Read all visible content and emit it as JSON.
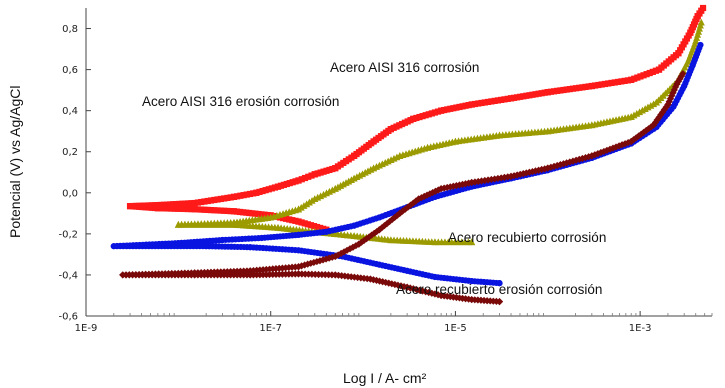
{
  "chart_data": {
    "type": "line",
    "title": "",
    "xlabel": "Log I / A- cm²",
    "ylabel": "Potencial (V) vs Ag/AgCl",
    "x_scale": "log",
    "xlim": [
      1e-09,
      0.006
    ],
    "ylim": [
      -0.6,
      0.9
    ],
    "x_ticks": [
      {
        "value": 1e-09,
        "label": "1E-9"
      },
      {
        "value": 1e-07,
        "label": "1E-7"
      },
      {
        "value": 1e-05,
        "label": "1E-5"
      },
      {
        "value": 0.001,
        "label": "1E-3"
      }
    ],
    "y_ticks": [
      {
        "value": -0.6,
        "label": "-0,6"
      },
      {
        "value": -0.4,
        "label": "-0,4"
      },
      {
        "value": -0.2,
        "label": "-0,2"
      },
      {
        "value": 0.0,
        "label": "0,0"
      },
      {
        "value": 0.2,
        "label": "0,2"
      },
      {
        "value": 0.4,
        "label": "0,4"
      },
      {
        "value": 0.6,
        "label": "0,6"
      },
      {
        "value": 0.8,
        "label": "0,8"
      }
    ],
    "grid": false,
    "annotations": [
      "Acero AISI 316 corrosión",
      "Acero AISI 316 erosión corrosión",
      "Acero recubierto corrosión",
      "Acero recubierto erosión corrosión"
    ],
    "series": [
      {
        "color": "#ff1a1a",
        "marker": "square",
        "points": [
          [
            4e-07,
            -0.18
          ],
          [
            2e-07,
            -0.14
          ],
          [
            1e-07,
            -0.11
          ],
          [
            4e-08,
            -0.09
          ],
          [
            1.5e-08,
            -0.08
          ],
          [
            6e-09,
            -0.075
          ],
          [
            3e-09,
            -0.065
          ],
          [
            6e-09,
            -0.06
          ],
          [
            1.5e-08,
            -0.05
          ],
          [
            4e-08,
            -0.02
          ],
          [
            7e-08,
            0.0
          ],
          [
            1.2e-07,
            0.03
          ],
          [
            2e-07,
            0.06
          ],
          [
            3e-07,
            0.09
          ],
          [
            5e-07,
            0.12
          ],
          [
            8e-07,
            0.18
          ],
          [
            1.3e-06,
            0.25
          ],
          [
            2e-06,
            0.31
          ],
          [
            3.5e-06,
            0.36
          ],
          [
            7e-06,
            0.4
          ],
          [
            1.5e-05,
            0.43
          ],
          [
            4e-05,
            0.46
          ],
          [
            0.0001,
            0.49
          ],
          [
            0.0003,
            0.52
          ],
          [
            0.0008,
            0.55
          ],
          [
            0.0016,
            0.6
          ],
          [
            0.0026,
            0.68
          ],
          [
            0.0035,
            0.78
          ],
          [
            0.0042,
            0.86
          ],
          [
            0.0048,
            0.9
          ]
        ]
      },
      {
        "color": "#9b9b00",
        "marker": "triangle",
        "points": [
          [
            1.5e-05,
            -0.24
          ],
          [
            6e-06,
            -0.24
          ],
          [
            2e-06,
            -0.23
          ],
          [
            8e-07,
            -0.21
          ],
          [
            3e-07,
            -0.19
          ],
          [
            1.2e-07,
            -0.17
          ],
          [
            4e-08,
            -0.155
          ],
          [
            1e-08,
            -0.155
          ],
          [
            4e-08,
            -0.145
          ],
          [
            1e-07,
            -0.12
          ],
          [
            2e-07,
            -0.08
          ],
          [
            3e-07,
            -0.03
          ],
          [
            5e-07,
            0.02
          ],
          [
            8e-07,
            0.07
          ],
          [
            1.3e-06,
            0.12
          ],
          [
            2.5e-06,
            0.18
          ],
          [
            5e-06,
            0.22
          ],
          [
            1e-05,
            0.25
          ],
          [
            3e-05,
            0.28
          ],
          [
            0.0001,
            0.3
          ],
          [
            0.0003,
            0.33
          ],
          [
            0.0008,
            0.37
          ],
          [
            0.0015,
            0.44
          ],
          [
            0.0025,
            0.54
          ],
          [
            0.0033,
            0.64
          ],
          [
            0.004,
            0.74
          ],
          [
            0.0046,
            0.83
          ]
        ]
      },
      {
        "color": "#0a14e0",
        "marker": "circle",
        "points": [
          [
            3e-05,
            -0.44
          ],
          [
            1.5e-05,
            -0.43
          ],
          [
            6e-06,
            -0.41
          ],
          [
            3e-06,
            -0.38
          ],
          [
            1.5e-06,
            -0.35
          ],
          [
            6e-07,
            -0.31
          ],
          [
            2e-07,
            -0.28
          ],
          [
            6e-08,
            -0.265
          ],
          [
            2e-08,
            -0.26
          ],
          [
            2e-09,
            -0.26
          ],
          [
            1e-08,
            -0.245
          ],
          [
            3e-08,
            -0.23
          ],
          [
            8e-08,
            -0.22
          ],
          [
            2e-07,
            -0.205
          ],
          [
            4e-07,
            -0.19
          ],
          [
            8e-07,
            -0.16
          ],
          [
            1.5e-06,
            -0.12
          ],
          [
            3e-06,
            -0.07
          ],
          [
            6e-06,
            -0.02
          ],
          [
            1.5e-05,
            0.03
          ],
          [
            4e-05,
            0.07
          ],
          [
            0.0001,
            0.11
          ],
          [
            0.0003,
            0.17
          ],
          [
            0.0008,
            0.24
          ],
          [
            0.0015,
            0.32
          ],
          [
            0.0023,
            0.42
          ],
          [
            0.003,
            0.52
          ],
          [
            0.0037,
            0.62
          ],
          [
            0.0045,
            0.72
          ]
        ]
      },
      {
        "color": "#7a0a0a",
        "marker": "diamond",
        "points": [
          [
            3e-05,
            -0.53
          ],
          [
            1.5e-05,
            -0.52
          ],
          [
            7e-06,
            -0.5
          ],
          [
            3e-06,
            -0.46
          ],
          [
            1.2e-06,
            -0.42
          ],
          [
            5e-07,
            -0.4
          ],
          [
            2e-07,
            -0.395
          ],
          [
            6e-08,
            -0.4
          ],
          [
            1.5e-08,
            -0.4
          ],
          [
            2.5e-09,
            -0.4
          ],
          [
            1.5e-08,
            -0.39
          ],
          [
            6e-08,
            -0.38
          ],
          [
            2e-07,
            -0.36
          ],
          [
            5e-07,
            -0.31
          ],
          [
            9e-07,
            -0.25
          ],
          [
            1.5e-06,
            -0.18
          ],
          [
            2.5e-06,
            -0.1
          ],
          [
            4e-06,
            -0.03
          ],
          [
            7e-06,
            0.02
          ],
          [
            1.5e-05,
            0.05
          ],
          [
            4e-05,
            0.08
          ],
          [
            0.0001,
            0.12
          ],
          [
            0.0003,
            0.18
          ],
          [
            0.0008,
            0.25
          ],
          [
            0.0014,
            0.33
          ],
          [
            0.002,
            0.43
          ],
          [
            0.0025,
            0.53
          ],
          [
            0.0029,
            0.58
          ]
        ]
      }
    ]
  }
}
